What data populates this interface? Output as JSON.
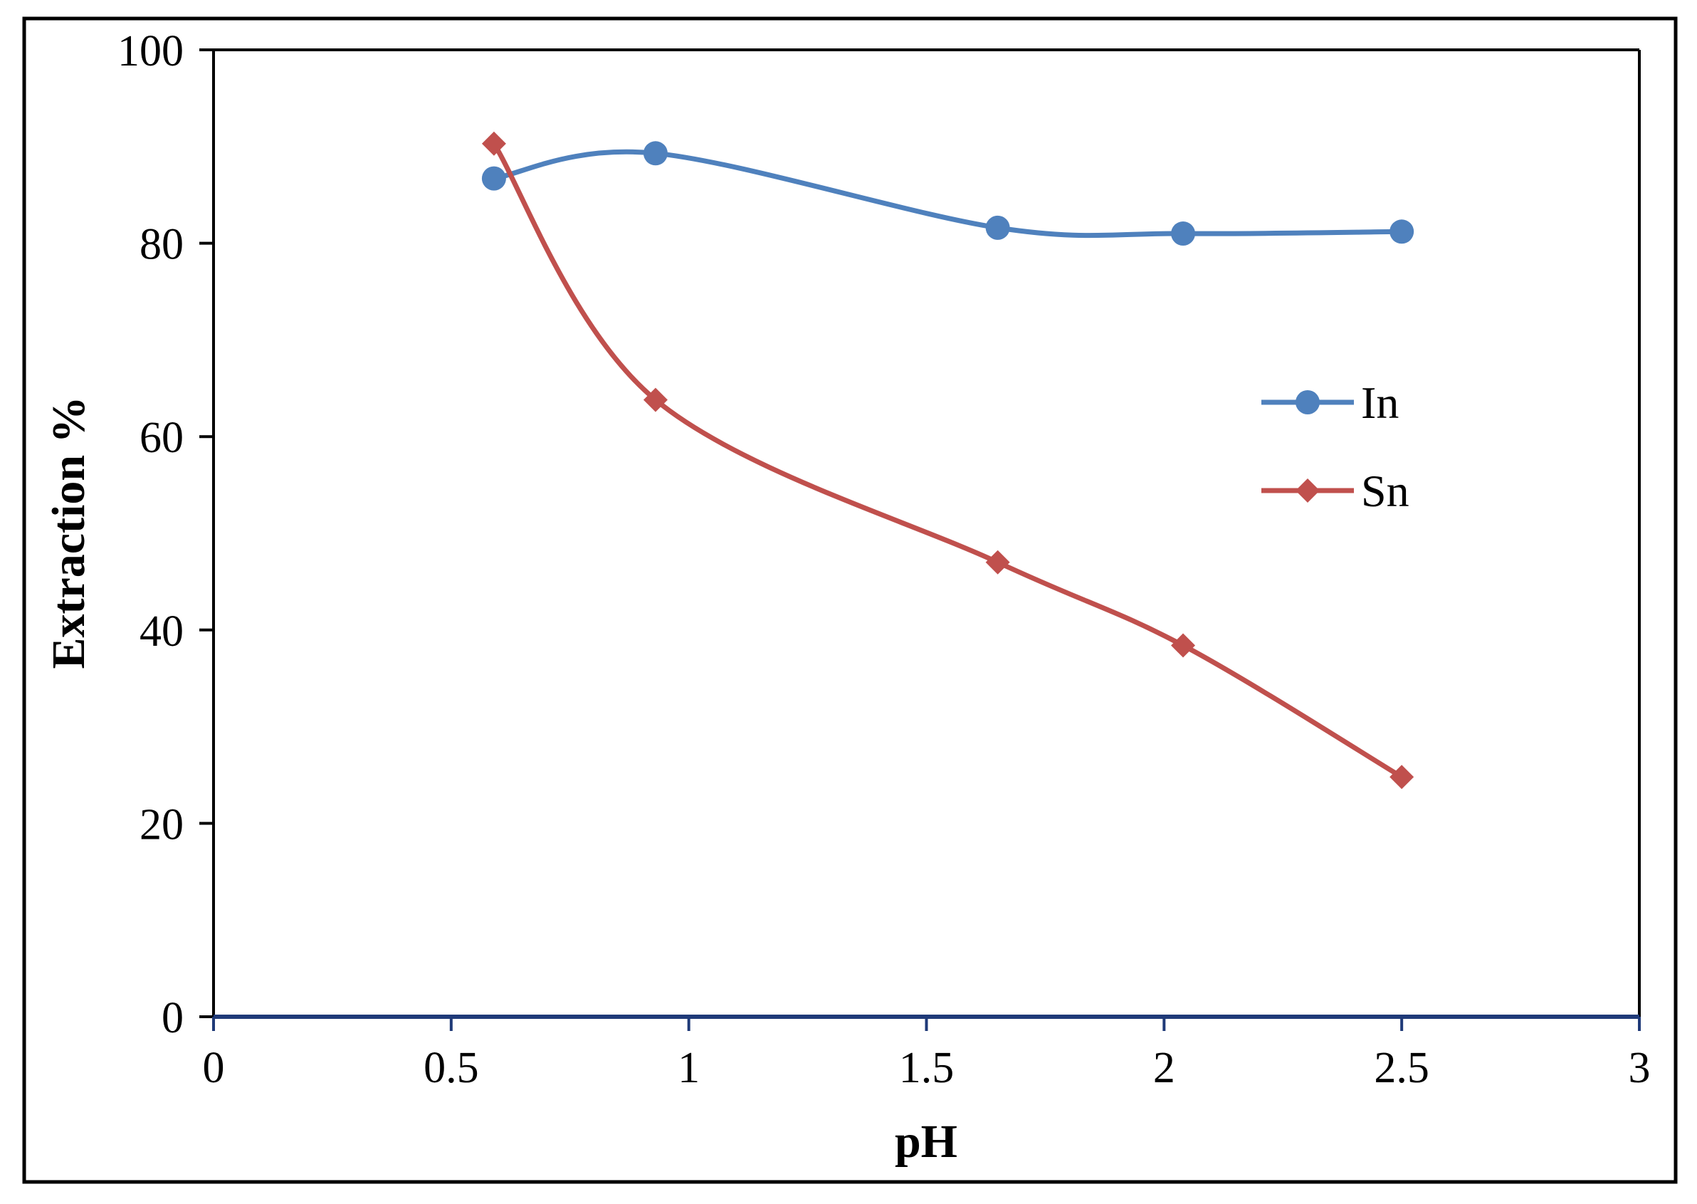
{
  "chart_data": {
    "type": "line",
    "title": "",
    "xlabel": "pH",
    "ylabel": "Extraction %",
    "xlim": [
      0,
      3
    ],
    "ylim": [
      0,
      100
    ],
    "xticks": [
      0,
      0.5,
      1,
      1.5,
      2,
      2.5,
      3
    ],
    "xtick_labels": [
      "0",
      "0.5",
      "1",
      "1.5",
      "2",
      "2.5",
      "3"
    ],
    "yticks": [
      0,
      20,
      40,
      60,
      80,
      100
    ],
    "ytick_labels": [
      "0",
      "20",
      "40",
      "60",
      "80",
      "100"
    ],
    "grid": false,
    "legend_position": "right",
    "series": [
      {
        "name": "In",
        "color": "#4F81BD",
        "marker": "circle",
        "x": [
          0.59,
          0.93,
          1.65,
          2.04,
          2.5
        ],
        "y": [
          86.7,
          89.3,
          81.6,
          81.0,
          81.2
        ]
      },
      {
        "name": "Sn",
        "color": "#C0504D",
        "marker": "diamond",
        "x": [
          0.59,
          0.93,
          1.65,
          2.04,
          2.5
        ],
        "y": [
          90.3,
          63.8,
          47.0,
          38.4,
          24.8
        ]
      }
    ]
  }
}
